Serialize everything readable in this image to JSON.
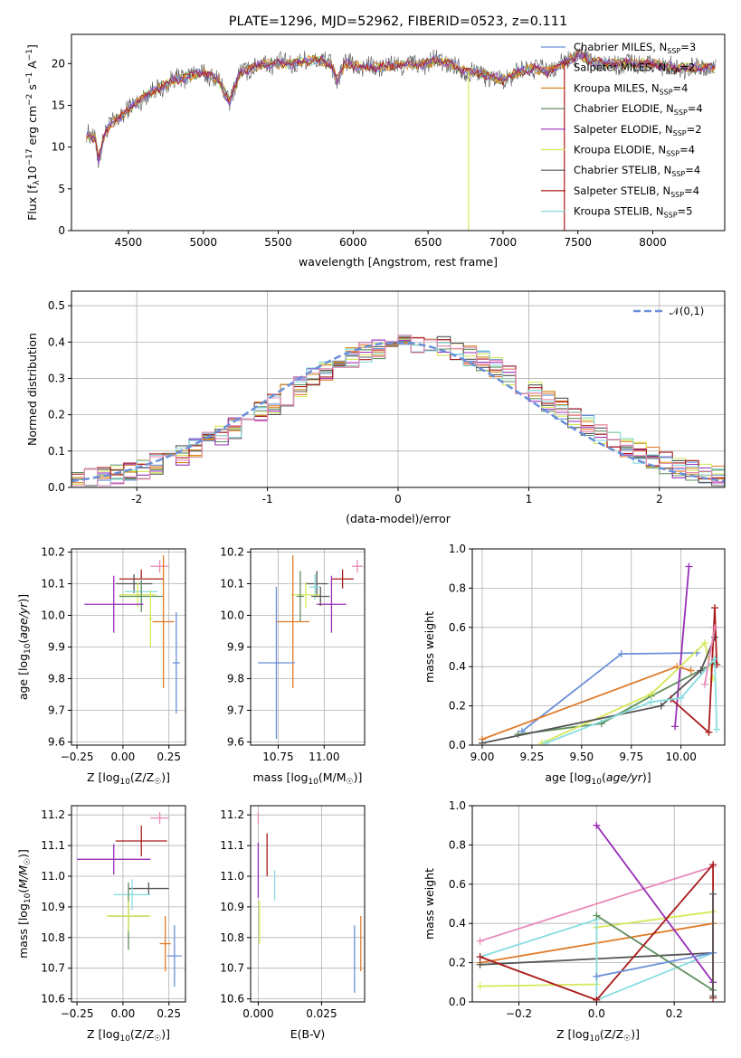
{
  "colors": {
    "Chabrier MILES": "#6a8fd8",
    "Salpeter MILES": "#e07b2a",
    "Kroupa MILES": "#d08a1c",
    "Chabrier ELODIE": "#5e8f5e",
    "Salpeter ELODIE": "#9a30b8",
    "Kroupa ELODIE": "#d6e85a",
    "Chabrier STELIB": "#555555",
    "Salpeter STELIB": "#aa1a1a",
    "Kroupa STELIB": "#88dde0",
    "pink": "#e88ab8",
    "normal_curve": "#6a8fd8"
  },
  "chart_data": [
    {
      "id": "spectrum",
      "type": "line",
      "title": "PLATE=1296, MJD=52962, FIBERID=0523, z=0.111",
      "xlabel": "wavelength [Angstrom, rest frame]",
      "ylabel_parts": [
        "Flux [f",
        "λ",
        "10",
        "−17",
        " erg cm",
        "−2",
        " s",
        "−1",
        " A",
        "−1",
        "]"
      ],
      "xlim": [
        4120,
        8480
      ],
      "ylim": [
        0,
        23.5
      ],
      "xticks": [
        4500,
        5000,
        5500,
        6000,
        6500,
        7000,
        7500,
        8000
      ],
      "yticks": [
        0,
        5,
        10,
        15,
        20
      ],
      "grid": false,
      "legend_position": "right",
      "legend": [
        {
          "name": "Chabrier MILES, N",
          "sub": "SSP",
          "tail": "=3"
        },
        {
          "name": "Salpeter MILES, N",
          "sub": "SSP",
          "tail": "=2"
        },
        {
          "name": "Kroupa MILES, N",
          "sub": "SSP",
          "tail": "=4"
        },
        {
          "name": "Chabrier ELODIE, N",
          "sub": "SSP",
          "tail": "=4"
        },
        {
          "name": "Salpeter ELODIE, N",
          "sub": "SSP",
          "tail": "=2"
        },
        {
          "name": "Kroupa ELODIE, N",
          "sub": "SSP",
          "tail": "=4"
        },
        {
          "name": "Chabrier STELIB, N",
          "sub": "SSP",
          "tail": "=4"
        },
        {
          "name": "Salpeter STELIB, N",
          "sub": "SSP",
          "tail": "=4"
        },
        {
          "name": "Kroupa STELIB, N",
          "sub": "SSP",
          "tail": "=5"
        }
      ],
      "continuum": [
        [
          4220,
          11.5
        ],
        [
          4280,
          11
        ],
        [
          4300,
          8.5
        ],
        [
          4340,
          11.5
        ],
        [
          4400,
          13
        ],
        [
          4500,
          14.5
        ],
        [
          4600,
          16
        ],
        [
          4700,
          17
        ],
        [
          4800,
          18
        ],
        [
          4900,
          18.5
        ],
        [
          5000,
          19
        ],
        [
          5100,
          18
        ],
        [
          5175,
          15.5
        ],
        [
          5250,
          19
        ],
        [
          5400,
          20
        ],
        [
          5600,
          20
        ],
        [
          5750,
          20.5
        ],
        [
          5850,
          20
        ],
        [
          5895,
          18
        ],
        [
          5950,
          20
        ],
        [
          6100,
          19.5
        ],
        [
          6300,
          19.8
        ],
        [
          6500,
          20
        ],
        [
          6563,
          20.5
        ],
        [
          6700,
          19.5
        ],
        [
          6800,
          19
        ],
        [
          7000,
          18
        ],
        [
          7100,
          19
        ],
        [
          7200,
          19.5
        ],
        [
          7300,
          19
        ],
        [
          7400,
          20
        ],
        [
          7500,
          21
        ],
        [
          7600,
          20.3
        ],
        [
          7700,
          20
        ],
        [
          7800,
          20
        ],
        [
          8000,
          20
        ],
        [
          8150,
          19.5
        ],
        [
          8300,
          19.5
        ],
        [
          8420,
          19.5
        ]
      ],
      "noise_amplitude": 1.2,
      "glitches": [
        {
          "x": 6770,
          "color": "Kroupa ELODIE"
        },
        {
          "x": 7410,
          "color": "Salpeter STELIB"
        }
      ]
    },
    {
      "id": "residual-histogram",
      "type": "histogram",
      "xlabel": "(data-model)/error",
      "ylabel": "Normed distribution",
      "xlim": [
        -2.5,
        2.5
      ],
      "ylim": [
        0,
        0.54
      ],
      "xticks": [
        -2,
        -1,
        0,
        1,
        2
      ],
      "yticks": [
        0.0,
        0.1,
        0.2,
        0.3,
        0.4,
        0.5
      ],
      "grid": true,
      "legend_position": "upper right",
      "legend_label": "𝒩(0,1)",
      "bin_width": 0.1,
      "series_colors": [
        "Chabrier MILES",
        "Salpeter MILES",
        "Kroupa MILES",
        "Chabrier ELODIE",
        "Salpeter ELODIE",
        "Kroupa ELODIE",
        "Chabrier STELIB",
        "Salpeter STELIB",
        "Kroupa STELIB",
        "pink"
      ]
    },
    {
      "id": "age-vs-Z",
      "type": "scatter",
      "xlabel": "Z [log",
      "xlabel_sub": "10",
      "xlabel_tail": "(Z/Z",
      "ylabel": "age  [log10(age/yr)]",
      "xlim": [
        -0.28,
        0.34
      ],
      "ylim": [
        9.59,
        10.21
      ],
      "xticks": [
        -0.25,
        0.0,
        0.25
      ],
      "xtick_labels": [
        "−0.25",
        "0.00",
        "0.25"
      ],
      "yticks": [
        9.6,
        9.7,
        9.8,
        9.9,
        10.0,
        10.1,
        10.2
      ],
      "grid": true,
      "points": [
        {
          "c": "pink",
          "x": 0.2,
          "ex": 0.05,
          "y": 10.155,
          "ey": 0.02
        },
        {
          "c": "Salpeter STELIB",
          "x": 0.1,
          "ex": 0.12,
          "y": 10.115,
          "ey": 0.03
        },
        {
          "c": "Chabrier STELIB",
          "x": 0.06,
          "ex": 0.1,
          "y": 10.1,
          "ey": 0.03
        },
        {
          "c": "Kroupa STELIB",
          "x": 0.1,
          "ex": 0.09,
          "y": 10.075,
          "ey": 0.04
        },
        {
          "c": "Kroupa ELODIE",
          "x": 0.08,
          "ex": 0.1,
          "y": 10.065,
          "ey": 0.04
        },
        {
          "c": "Chabrier ELODIE",
          "x": 0.1,
          "ex": 0.12,
          "y": 10.06,
          "ey": 0.05
        },
        {
          "c": "Salpeter ELODIE",
          "x": -0.05,
          "ex": 0.16,
          "y": 10.035,
          "ey": 0.09
        },
        {
          "c": "Kroupa ELODIE",
          "x": 0.15,
          "ex": 0.01,
          "y": 9.99,
          "ey": 0.09
        },
        {
          "c": "Salpeter MILES",
          "x": 0.22,
          "ex": 0.06,
          "y": 9.98,
          "ey": 0.21
        },
        {
          "c": "Chabrier MILES",
          "x": 0.29,
          "ex": 0.02,
          "y": 9.85,
          "ey": 0.16
        }
      ]
    },
    {
      "id": "age-vs-mass",
      "type": "scatter",
      "xlabel": "mass [log",
      "xlabel_sub": "10",
      "xlabel_tail": "(M/M",
      "xlim": [
        10.6,
        11.22
      ],
      "ylim": [
        9.59,
        10.21
      ],
      "xticks": [
        10.75,
        11.0
      ],
      "xtick_labels": [
        "10.75",
        "11.00"
      ],
      "yticks": [
        9.6,
        9.7,
        9.8,
        9.9,
        10.0,
        10.1,
        10.2
      ],
      "grid": true,
      "points": [
        {
          "c": "pink",
          "x": 11.18,
          "ex": 0.03,
          "y": 10.155,
          "ey": 0.02
        },
        {
          "c": "Salpeter STELIB",
          "x": 11.1,
          "ex": 0.06,
          "y": 10.115,
          "ey": 0.03
        },
        {
          "c": "Chabrier STELIB",
          "x": 10.96,
          "ex": 0.06,
          "y": 10.1,
          "ey": 0.04
        },
        {
          "c": "Kroupa STELIB",
          "x": 10.95,
          "ex": 0.03,
          "y": 10.09,
          "ey": 0.04
        },
        {
          "c": "Kroupa ELODIE",
          "x": 10.9,
          "ex": 0.08,
          "y": 10.065,
          "ey": 0.04
        },
        {
          "c": "Chabrier ELODIE",
          "x": 10.87,
          "ex": 0.02,
          "y": 10.06,
          "ey": 0.08
        },
        {
          "c": "Salpeter ELODIE",
          "x": 11.04,
          "ex": 0.08,
          "y": 10.035,
          "ey": 0.09
        },
        {
          "c": "Chabrier STELIB",
          "x": 10.98,
          "ex": 0.05,
          "y": 10.06,
          "ey": 0.03
        },
        {
          "c": "Salpeter MILES",
          "x": 10.83,
          "ex": 0.09,
          "y": 9.98,
          "ey": 0.21
        },
        {
          "c": "Chabrier MILES",
          "x": 10.74,
          "ex": 0.1,
          "y": 9.85,
          "ey": 0.24
        }
      ]
    },
    {
      "id": "massweight-vs-age",
      "type": "line",
      "xlabel": "age  [log10(age/yr)]",
      "ylabel": "mass weight",
      "xlim": [
        8.95,
        10.22
      ],
      "ylim": [
        0,
        1.0
      ],
      "xticks": [
        9.0,
        9.25,
        9.5,
        9.75,
        10.0
      ],
      "xtick_labels": [
        "9.00",
        "9.25",
        "9.50",
        "9.75",
        "10.00"
      ],
      "yticks": [
        0.0,
        0.2,
        0.4,
        0.6,
        0.8,
        1.0
      ],
      "grid": true,
      "series": [
        {
          "c": "Chabrier MILES",
          "points": [
            [
              9.2,
              0.07
            ],
            [
              9.7,
              0.465
            ],
            [
              10.08,
              0.47
            ]
          ]
        },
        {
          "c": "Salpeter MILES",
          "points": [
            [
              9.0,
              0.03
            ],
            [
              9.98,
              0.4
            ],
            [
              10.05,
              0.38
            ]
          ]
        },
        {
          "c": "Chabrier ELODIE",
          "points": [
            [
              9.18,
              0.055
            ],
            [
              9.6,
              0.11
            ],
            [
              9.85,
              0.25
            ],
            [
              10.17,
              0.42
            ]
          ]
        },
        {
          "c": "Salpeter ELODIE",
          "points": [
            [
              9.97,
              0.095
            ],
            [
              10.04,
              0.91
            ]
          ]
        },
        {
          "c": "Kroupa ELODIE",
          "points": [
            [
              9.3,
              0.01
            ],
            [
              9.85,
              0.26
            ],
            [
              10.12,
              0.52
            ],
            [
              10.16,
              0.34
            ]
          ]
        },
        {
          "c": "Chabrier STELIB",
          "points": [
            [
              9.0,
              0.01
            ],
            [
              9.9,
              0.2
            ],
            [
              10.1,
              0.38
            ],
            [
              10.17,
              0.55
            ]
          ]
        },
        {
          "c": "Salpeter STELIB",
          "points": [
            [
              9.95,
              0.235
            ],
            [
              10.14,
              0.065
            ],
            [
              10.17,
              0.7
            ],
            [
              10.18,
              0.41
            ]
          ]
        },
        {
          "c": "Kroupa STELIB",
          "points": [
            [
              9.32,
              0.01
            ],
            [
              9.85,
              0.22
            ],
            [
              10.0,
              0.24
            ],
            [
              10.17,
              0.44
            ],
            [
              10.18,
              0.08
            ]
          ]
        },
        {
          "c": "pink",
          "points": [
            [
              10.12,
              0.31
            ],
            [
              10.17,
              0.6
            ]
          ]
        }
      ]
    },
    {
      "id": "mass-vs-Z",
      "type": "scatter",
      "xlabel": "Z [log",
      "xlabel_sub": "10",
      "xlabel_tail": "(Z/Z",
      "ylabel": "mass [log10(M/M☉)]",
      "xlim": [
        -0.28,
        0.34
      ],
      "ylim": [
        10.59,
        11.23
      ],
      "xticks": [
        -0.25,
        0.0,
        0.25
      ],
      "xtick_labels": [
        "−0.25",
        "0.00",
        "0.25"
      ],
      "yticks": [
        10.6,
        10.7,
        10.8,
        10.9,
        11.0,
        11.1,
        11.2
      ],
      "grid": true,
      "points": [
        {
          "c": "pink",
          "x": 0.2,
          "ex": 0.05,
          "y": 11.19,
          "ey": 0.02
        },
        {
          "c": "Salpeter STELIB",
          "x": 0.1,
          "ex": 0.14,
          "y": 11.115,
          "ey": 0.05
        },
        {
          "c": "Salpeter ELODIE",
          "x": -0.05,
          "ex": 0.2,
          "y": 11.055,
          "ey": 0.05
        },
        {
          "c": "Chabrier STELIB",
          "x": 0.14,
          "ex": 0.11,
          "y": 10.96,
          "ey": 0.02
        },
        {
          "c": "Kroupa STELIB",
          "x": 0.05,
          "ex": 0.1,
          "y": 10.94,
          "ey": 0.05
        },
        {
          "c": "Chabrier ELODIE",
          "x": 0.03,
          "ex": 0.11,
          "y": 10.87,
          "ey": 0.11
        },
        {
          "c": "Kroupa ELODIE",
          "x": 0.03,
          "ex": 0.12,
          "y": 10.87,
          "ey": 0.05
        },
        {
          "c": "Salpeter MILES",
          "x": 0.23,
          "ex": 0.03,
          "y": 10.78,
          "ey": 0.09
        },
        {
          "c": "Chabrier MILES",
          "x": 0.28,
          "ex": 0.04,
          "y": 10.74,
          "ey": 0.1
        }
      ]
    },
    {
      "id": "mass-vs-EBV",
      "type": "scatter",
      "xlabel": "E(B-V)",
      "xlim": [
        -0.003,
        0.042
      ],
      "ylim": [
        10.59,
        11.23
      ],
      "xticks": [
        0.0,
        0.025
      ],
      "xtick_labels": [
        "0.000",
        "0.025"
      ],
      "yticks": [
        10.6,
        10.7,
        10.8,
        10.9,
        11.0,
        11.1,
        11.2
      ],
      "grid": true,
      "points": [
        {
          "c": "pink",
          "x": 0.0,
          "ex": 0,
          "y": 11.19,
          "ey": 0.02
        },
        {
          "c": "Salpeter STELIB",
          "x": 0.0035,
          "ex": 0,
          "y": 11.07,
          "ey": 0.07
        },
        {
          "c": "Salpeter ELODIE",
          "x": 0.0,
          "ex": 0,
          "y": 11.02,
          "ey": 0.09
        },
        {
          "c": "Kroupa STELIB",
          "x": 0.0065,
          "ex": 0,
          "y": 10.97,
          "ey": 0.05
        },
        {
          "c": "Kroupa ELODIE",
          "x": 0.0005,
          "ex": 0,
          "y": 10.85,
          "ey": 0.07
        },
        {
          "c": "Chabrier MILES",
          "x": 0.038,
          "ex": 0,
          "y": 10.73,
          "ey": 0.11
        },
        {
          "c": "Salpeter MILES",
          "x": 0.0405,
          "ex": 0,
          "y": 10.78,
          "ey": 0.09
        }
      ]
    },
    {
      "id": "massweight-vs-Z",
      "type": "line",
      "xlabel": "Z [log",
      "xlabel_sub": "10",
      "xlabel_tail": "(Z/Z",
      "ylabel": "mass weight",
      "xlim": [
        -0.32,
        0.33
      ],
      "ylim": [
        0,
        1.0
      ],
      "xticks": [
        -0.2,
        0.0,
        0.2
      ],
      "xtick_labels": [
        "−0.2",
        "0.0",
        "0.2"
      ],
      "yticks": [
        0.0,
        0.2,
        0.4,
        0.6,
        0.8,
        1.0
      ],
      "grid": true,
      "series": [
        {
          "c": "pink",
          "points": [
            [
              -0.3,
              0.31
            ],
            [
              0.3,
              0.69
            ]
          ]
        },
        {
          "c": "Salpeter MILES",
          "points": [
            [
              -0.3,
              0.2
            ],
            [
              0.3,
              0.4
            ]
          ]
        },
        {
          "c": "Chabrier STELIB",
          "points": [
            [
              -0.3,
              0.19
            ],
            [
              0.3,
              0.25
            ]
          ]
        },
        {
          "c": "Kroupa ELODIE",
          "points": [
            [
              -0.3,
              0.08
            ],
            [
              0.0,
              0.09
            ],
            [
              0.0,
              0.38
            ],
            [
              0.3,
              0.46
            ]
          ]
        },
        {
          "c": "Kroupa STELIB",
          "points": [
            [
              -0.3,
              0.23
            ],
            [
              0.0,
              0.42
            ],
            [
              0.0,
              0.01
            ],
            [
              0.3,
              0.25
            ]
          ]
        },
        {
          "c": "Chabrier ELODIE",
          "points": [
            [
              0.0,
              0.44
            ],
            [
              0.3,
              0.06
            ]
          ]
        },
        {
          "c": "Salpeter ELODIE",
          "points": [
            [
              0.0,
              0.9
            ],
            [
              0.3,
              0.1
            ]
          ]
        },
        {
          "c": "Salpeter STELIB",
          "points": [
            [
              -0.3,
              0.23
            ],
            [
              0.0,
              0.01
            ],
            [
              0.3,
              0.7
            ],
            [
              0.3,
              0.02
            ]
          ]
        },
        {
          "c": "Chabrier MILES",
          "points": [
            [
              0.0,
              0.13
            ],
            [
              0.3,
              0.25
            ]
          ]
        },
        {
          "c": "Chabrier STELIB",
          "points": [
            [
              0.3,
              0.55
            ],
            [
              0.3,
              0.03
            ]
          ]
        }
      ]
    }
  ]
}
